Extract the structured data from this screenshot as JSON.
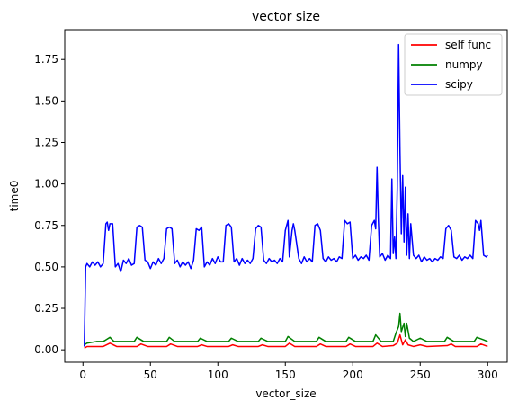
{
  "chart_data": {
    "type": "line",
    "title": "vector size",
    "xlabel": "vector_size",
    "ylabel": "time0",
    "xlim": [
      -13.5,
      314.5
    ],
    "ylim": [
      -0.075,
      1.93
    ],
    "xticks": [
      0,
      50,
      100,
      150,
      200,
      250,
      300
    ],
    "xtick_labels": [
      "0",
      "50",
      "100",
      "150",
      "200",
      "250",
      "300"
    ],
    "yticks": [
      0.0,
      0.25,
      0.5,
      0.75,
      1.0,
      1.25,
      1.5,
      1.75
    ],
    "ytick_labels": [
      "0.00",
      "0.25",
      "0.50",
      "0.75",
      "1.00",
      "1.25",
      "1.50",
      "1.75"
    ],
    "grid": false,
    "legend_position": "top-right",
    "series": [
      {
        "name": "self func",
        "color": "#ff0000",
        "points": [
          [
            1,
            0.01
          ],
          [
            3,
            0.02
          ],
          [
            15,
            0.02
          ],
          [
            20,
            0.04
          ],
          [
            25,
            0.02
          ],
          [
            40,
            0.02
          ],
          [
            43,
            0.035
          ],
          [
            48,
            0.02
          ],
          [
            62,
            0.02
          ],
          [
            65,
            0.035
          ],
          [
            70,
            0.02
          ],
          [
            85,
            0.02
          ],
          [
            88,
            0.03
          ],
          [
            92,
            0.02
          ],
          [
            108,
            0.02
          ],
          [
            111,
            0.03
          ],
          [
            115,
            0.02
          ],
          [
            130,
            0.02
          ],
          [
            133,
            0.03
          ],
          [
            137,
            0.02
          ],
          [
            150,
            0.02
          ],
          [
            153,
            0.04
          ],
          [
            157,
            0.02
          ],
          [
            173,
            0.02
          ],
          [
            176,
            0.035
          ],
          [
            180,
            0.02
          ],
          [
            195,
            0.02
          ],
          [
            198,
            0.035
          ],
          [
            202,
            0.02
          ],
          [
            215,
            0.02
          ],
          [
            218,
            0.04
          ],
          [
            222,
            0.02
          ],
          [
            230,
            0.025
          ],
          [
            233,
            0.04
          ],
          [
            235,
            0.09
          ],
          [
            237,
            0.03
          ],
          [
            239,
            0.06
          ],
          [
            241,
            0.03
          ],
          [
            245,
            0.02
          ],
          [
            250,
            0.03
          ],
          [
            255,
            0.02
          ],
          [
            270,
            0.025
          ],
          [
            273,
            0.035
          ],
          [
            276,
            0.02
          ],
          [
            292,
            0.02
          ],
          [
            295,
            0.035
          ],
          [
            300,
            0.02
          ]
        ]
      },
      {
        "name": "numpy",
        "color": "#008000",
        "points": [
          [
            1,
            0.03
          ],
          [
            3,
            0.04
          ],
          [
            10,
            0.05
          ],
          [
            15,
            0.05
          ],
          [
            17,
            0.06
          ],
          [
            20,
            0.075
          ],
          [
            23,
            0.05
          ],
          [
            38,
            0.05
          ],
          [
            40,
            0.075
          ],
          [
            45,
            0.05
          ],
          [
            62,
            0.05
          ],
          [
            64,
            0.075
          ],
          [
            68,
            0.05
          ],
          [
            85,
            0.05
          ],
          [
            87,
            0.07
          ],
          [
            92,
            0.05
          ],
          [
            108,
            0.05
          ],
          [
            110,
            0.07
          ],
          [
            115,
            0.05
          ],
          [
            130,
            0.05
          ],
          [
            132,
            0.07
          ],
          [
            137,
            0.05
          ],
          [
            150,
            0.05
          ],
          [
            152,
            0.08
          ],
          [
            157,
            0.05
          ],
          [
            173,
            0.05
          ],
          [
            175,
            0.075
          ],
          [
            180,
            0.05
          ],
          [
            195,
            0.05
          ],
          [
            197,
            0.075
          ],
          [
            202,
            0.05
          ],
          [
            215,
            0.05
          ],
          [
            217,
            0.09
          ],
          [
            221,
            0.05
          ],
          [
            230,
            0.05
          ],
          [
            232,
            0.1
          ],
          [
            234,
            0.14
          ],
          [
            235,
            0.22
          ],
          [
            236,
            0.11
          ],
          [
            238,
            0.16
          ],
          [
            239,
            0.08
          ],
          [
            240,
            0.16
          ],
          [
            242,
            0.07
          ],
          [
            245,
            0.05
          ],
          [
            250,
            0.07
          ],
          [
            255,
            0.05
          ],
          [
            268,
            0.05
          ],
          [
            270,
            0.075
          ],
          [
            275,
            0.05
          ],
          [
            290,
            0.05
          ],
          [
            292,
            0.075
          ],
          [
            297,
            0.06
          ],
          [
            300,
            0.05
          ]
        ]
      },
      {
        "name": "scipy",
        "color": "#0000ff",
        "points": [
          [
            1,
            0.02
          ],
          [
            2,
            0.5
          ],
          [
            3,
            0.52
          ],
          [
            5,
            0.5
          ],
          [
            7,
            0.53
          ],
          [
            9,
            0.51
          ],
          [
            11,
            0.53
          ],
          [
            13,
            0.5
          ],
          [
            15,
            0.52
          ],
          [
            17,
            0.76
          ],
          [
            18,
            0.77
          ],
          [
            19,
            0.72
          ],
          [
            20,
            0.76
          ],
          [
            22,
            0.76
          ],
          [
            24,
            0.5
          ],
          [
            26,
            0.52
          ],
          [
            28,
            0.47
          ],
          [
            30,
            0.54
          ],
          [
            32,
            0.52
          ],
          [
            34,
            0.55
          ],
          [
            36,
            0.51
          ],
          [
            38,
            0.52
          ],
          [
            40,
            0.74
          ],
          [
            42,
            0.75
          ],
          [
            44,
            0.74
          ],
          [
            46,
            0.54
          ],
          [
            48,
            0.53
          ],
          [
            50,
            0.49
          ],
          [
            52,
            0.53
          ],
          [
            54,
            0.51
          ],
          [
            56,
            0.55
          ],
          [
            58,
            0.52
          ],
          [
            60,
            0.55
          ],
          [
            62,
            0.73
          ],
          [
            64,
            0.74
          ],
          [
            66,
            0.73
          ],
          [
            68,
            0.52
          ],
          [
            70,
            0.54
          ],
          [
            72,
            0.5
          ],
          [
            74,
            0.53
          ],
          [
            76,
            0.51
          ],
          [
            78,
            0.53
          ],
          [
            80,
            0.49
          ],
          [
            82,
            0.54
          ],
          [
            84,
            0.73
          ],
          [
            86,
            0.72
          ],
          [
            88,
            0.74
          ],
          [
            90,
            0.5
          ],
          [
            92,
            0.53
          ],
          [
            94,
            0.51
          ],
          [
            96,
            0.55
          ],
          [
            98,
            0.52
          ],
          [
            100,
            0.56
          ],
          [
            102,
            0.53
          ],
          [
            104,
            0.53
          ],
          [
            106,
            0.75
          ],
          [
            108,
            0.76
          ],
          [
            110,
            0.74
          ],
          [
            112,
            0.53
          ],
          [
            114,
            0.55
          ],
          [
            116,
            0.51
          ],
          [
            118,
            0.55
          ],
          [
            120,
            0.52
          ],
          [
            122,
            0.54
          ],
          [
            124,
            0.52
          ],
          [
            126,
            0.55
          ],
          [
            128,
            0.73
          ],
          [
            130,
            0.75
          ],
          [
            132,
            0.74
          ],
          [
            134,
            0.54
          ],
          [
            136,
            0.52
          ],
          [
            138,
            0.55
          ],
          [
            140,
            0.53
          ],
          [
            142,
            0.54
          ],
          [
            144,
            0.52
          ],
          [
            146,
            0.55
          ],
          [
            148,
            0.53
          ],
          [
            150,
            0.72
          ],
          [
            152,
            0.78
          ],
          [
            153,
            0.56
          ],
          [
            155,
            0.72
          ],
          [
            156,
            0.76
          ],
          [
            157,
            0.72
          ],
          [
            160,
            0.55
          ],
          [
            162,
            0.52
          ],
          [
            164,
            0.56
          ],
          [
            166,
            0.53
          ],
          [
            168,
            0.55
          ],
          [
            170,
            0.53
          ],
          [
            172,
            0.75
          ],
          [
            174,
            0.76
          ],
          [
            176,
            0.72
          ],
          [
            178,
            0.55
          ],
          [
            180,
            0.53
          ],
          [
            182,
            0.56
          ],
          [
            184,
            0.54
          ],
          [
            186,
            0.55
          ],
          [
            188,
            0.53
          ],
          [
            190,
            0.56
          ],
          [
            192,
            0.55
          ],
          [
            194,
            0.78
          ],
          [
            196,
            0.76
          ],
          [
            198,
            0.77
          ],
          [
            200,
            0.55
          ],
          [
            202,
            0.57
          ],
          [
            204,
            0.54
          ],
          [
            206,
            0.56
          ],
          [
            208,
            0.55
          ],
          [
            210,
            0.57
          ],
          [
            212,
            0.54
          ],
          [
            214,
            0.75
          ],
          [
            216,
            0.78
          ],
          [
            217,
            0.73
          ],
          [
            218,
            1.1
          ],
          [
            219,
            0.78
          ],
          [
            220,
            0.56
          ],
          [
            222,
            0.58
          ],
          [
            224,
            0.54
          ],
          [
            226,
            0.57
          ],
          [
            228,
            0.55
          ],
          [
            229,
            1.03
          ],
          [
            230,
            0.58
          ],
          [
            231,
            0.68
          ],
          [
            232,
            0.55
          ],
          [
            233,
            0.98
          ],
          [
            234,
            1.84
          ],
          [
            235,
            1.2
          ],
          [
            236,
            0.7
          ],
          [
            237,
            1.05
          ],
          [
            238,
            0.65
          ],
          [
            239,
            0.98
          ],
          [
            240,
            0.57
          ],
          [
            241,
            0.82
          ],
          [
            242,
            0.55
          ],
          [
            243,
            0.76
          ],
          [
            245,
            0.57
          ],
          [
            247,
            0.55
          ],
          [
            249,
            0.57
          ],
          [
            251,
            0.53
          ],
          [
            253,
            0.56
          ],
          [
            255,
            0.54
          ],
          [
            257,
            0.55
          ],
          [
            259,
            0.53
          ],
          [
            261,
            0.55
          ],
          [
            263,
            0.54
          ],
          [
            265,
            0.56
          ],
          [
            267,
            0.55
          ],
          [
            269,
            0.73
          ],
          [
            271,
            0.75
          ],
          [
            273,
            0.72
          ],
          [
            275,
            0.56
          ],
          [
            277,
            0.55
          ],
          [
            279,
            0.57
          ],
          [
            281,
            0.54
          ],
          [
            283,
            0.56
          ],
          [
            285,
            0.55
          ],
          [
            287,
            0.57
          ],
          [
            289,
            0.55
          ],
          [
            291,
            0.78
          ],
          [
            293,
            0.76
          ],
          [
            294,
            0.72
          ],
          [
            295,
            0.78
          ],
          [
            297,
            0.57
          ],
          [
            299,
            0.56
          ],
          [
            300,
            0.57
          ]
        ]
      }
    ]
  }
}
